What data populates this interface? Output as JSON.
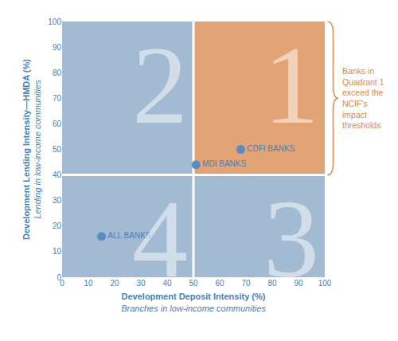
{
  "chart_data": {
    "type": "scatter",
    "xlabel": "Development Deposit Intensity (%)",
    "xsubtitle": "Branches in low-income communities",
    "ylabel": "Development Lending Intensity—HMDA (%)",
    "ysubtitle": "Lending in low-income communities",
    "x": [
      68,
      51,
      15
    ],
    "values": [
      50,
      44,
      16
    ],
    "point_labels": [
      "CDFI BANKS",
      "MDI BANKS",
      "ALL BANKS"
    ],
    "color": "#5b8cc0",
    "marker": "circle",
    "thresholds": {
      "x": 50,
      "y": 40
    },
    "quadrants": [
      {
        "label": "1",
        "color": "#e2a475"
      },
      {
        "label": "2",
        "color": "#a3bad3"
      },
      {
        "label": "3",
        "color": "#a3bad3"
      },
      {
        "label": "4",
        "color": "#a3bad3"
      }
    ],
    "annotation": "Banks in Quadrant 1 exceed the NCIF's impact thresholds",
    "xlim": [
      0,
      100
    ],
    "ylim": [
      0,
      100
    ],
    "xticks": [
      0,
      10,
      20,
      30,
      40,
      50,
      60,
      70,
      80,
      90,
      100
    ],
    "yticks": [
      0,
      10,
      20,
      30,
      40,
      50,
      60,
      70,
      80,
      90,
      100
    ],
    "grid": false
  }
}
